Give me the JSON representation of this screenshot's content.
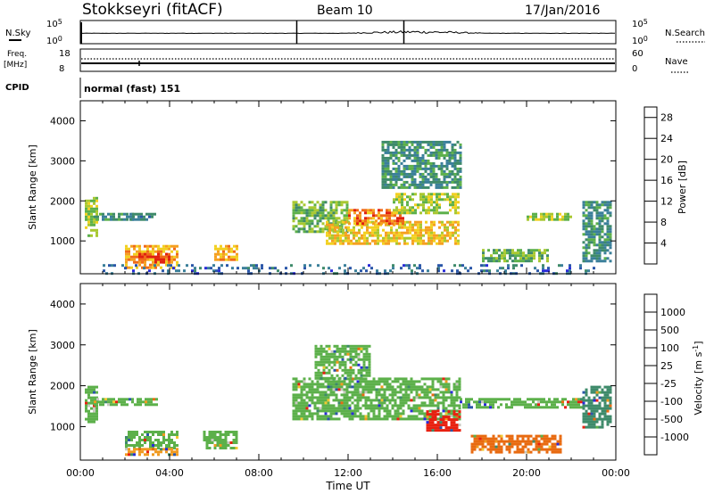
{
  "header": {
    "station": "Stokkseyri (fitACF)",
    "beam": "Beam 10",
    "date": "17/Jan/2016"
  },
  "top_panels": {
    "nsky": {
      "label": "N.Sky",
      "ticks": [
        "10^5",
        "10^0"
      ],
      "right_ticks": [
        "10^5",
        "10^0"
      ],
      "right_label": "N.Search"
    },
    "freq": {
      "label_line1": "Freq.",
      "label_line2": "[MHz]",
      "ticks": [
        "18",
        "8"
      ],
      "right_ticks": [
        "60",
        "0"
      ],
      "right_label": "Nave"
    },
    "cpid": {
      "label": "CPID",
      "value": "normal (fast) 151"
    }
  },
  "colors": {
    "power_scale": [
      "#2a2cd8",
      "#2a56a8",
      "#3a7f9a",
      "#3e8a6a",
      "#5cb04a",
      "#a8c830",
      "#f2d020",
      "#f5a020",
      "#f06a18",
      "#e02010"
    ],
    "velocity_scale": [
      "#2a2cd8",
      "#2a56a8",
      "#3e8a6a",
      "#5cb04a",
      "#c8c8c0",
      "#f0c830",
      "#f09a20",
      "#e86a10",
      "#e82010"
    ]
  },
  "chart_data": [
    {
      "type": "heatmap",
      "panel": "power",
      "ylabel": "Slant Range [km]",
      "xlabel": "",
      "y_ticks": [
        "1000",
        "2000",
        "3000",
        "4000"
      ],
      "ylim": [
        180,
        4500
      ],
      "xlim_hours": [
        0,
        24
      ],
      "colorbar_label": "Power [dB]",
      "colorbar_ticks": [
        "4",
        "8",
        "12",
        "16",
        "20",
        "24",
        "28"
      ],
      "colorbar_range": [
        0,
        30
      ],
      "regions": [
        {
          "t0": 0.2,
          "t1": 0.7,
          "r0": 1100,
          "r1": 2100,
          "value": 16
        },
        {
          "t0": 0.6,
          "t1": 2.3,
          "r0": 1550,
          "r1": 1700,
          "value": 10
        },
        {
          "t0": 2.2,
          "t1": 3.4,
          "r0": 1550,
          "r1": 1700,
          "value": 8
        },
        {
          "t0": 2.0,
          "t1": 4.4,
          "r0": 350,
          "r1": 900,
          "value": 22
        },
        {
          "t0": 2.6,
          "t1": 4.0,
          "r0": 450,
          "r1": 700,
          "value": 27
        },
        {
          "t0": 6.0,
          "t1": 7.0,
          "r0": 500,
          "r1": 900,
          "value": 22
        },
        {
          "t0": 9.5,
          "t1": 12.0,
          "r0": 1200,
          "r1": 2000,
          "value": 14
        },
        {
          "t0": 11.0,
          "t1": 17.0,
          "r0": 900,
          "r1": 1500,
          "value": 20
        },
        {
          "t0": 12.0,
          "t1": 14.5,
          "r0": 1400,
          "r1": 1800,
          "value": 24
        },
        {
          "t0": 14.0,
          "t1": 17.0,
          "r0": 1700,
          "r1": 2200,
          "value": 16
        },
        {
          "t0": 13.5,
          "t1": 17.0,
          "r0": 2300,
          "r1": 3500,
          "value": 10
        },
        {
          "t0": 18.0,
          "t1": 21.0,
          "r0": 500,
          "r1": 800,
          "value": 14
        },
        {
          "t0": 20.0,
          "t1": 22.0,
          "r0": 1500,
          "r1": 1700,
          "value": 16
        },
        {
          "t0": 22.5,
          "t1": 23.8,
          "r0": 500,
          "r1": 2000,
          "value": 10
        },
        {
          "t0": 1.0,
          "t1": 23.0,
          "r0": 200,
          "r1": 420,
          "value": 6
        }
      ]
    },
    {
      "type": "heatmap",
      "panel": "velocity",
      "ylabel": "Slant Range [km]",
      "xlabel": "Time UT",
      "y_ticks": [
        "1000",
        "2000",
        "3000",
        "4000"
      ],
      "ylim": [
        180,
        4500
      ],
      "x_ticks": [
        "00:00",
        "04:00",
        "08:00",
        "12:00",
        "16:00",
        "20:00",
        "00:00"
      ],
      "xlim_hours": [
        0,
        24
      ],
      "colorbar_label": "Velocity [m s^-1]",
      "colorbar_ticks": [
        "1000",
        "500",
        "100",
        "25",
        "-25",
        "-100",
        "-500",
        "-1000"
      ],
      "regions": [
        {
          "t0": 0.2,
          "t1": 0.7,
          "r0": 1100,
          "r1": 2000,
          "value": "25"
        },
        {
          "t0": 0.6,
          "t1": 3.4,
          "r0": 1550,
          "r1": 1700,
          "value": "25"
        },
        {
          "t0": 2.0,
          "t1": 4.4,
          "r0": 500,
          "r1": 900,
          "value": "25"
        },
        {
          "t0": 2.0,
          "t1": 4.4,
          "r0": 300,
          "r1": 480,
          "value": "-100"
        },
        {
          "t0": 5.5,
          "t1": 7.0,
          "r0": 500,
          "r1": 900,
          "value": "25"
        },
        {
          "t0": 9.5,
          "t1": 17.0,
          "r0": 1200,
          "r1": 2200,
          "value": "25"
        },
        {
          "t0": 10.5,
          "t1": 13.0,
          "r0": 2200,
          "r1": 3000,
          "value": "25"
        },
        {
          "t0": 15.5,
          "t1": 17.0,
          "r0": 900,
          "r1": 1400,
          "value": "-1000"
        },
        {
          "t0": 17.5,
          "t1": 21.5,
          "r0": 400,
          "r1": 800,
          "value": "-500"
        },
        {
          "t0": 17.0,
          "t1": 22.5,
          "r0": 1500,
          "r1": 1700,
          "value": "25"
        },
        {
          "t0": 22.5,
          "t1": 23.8,
          "r0": 1000,
          "r1": 2000,
          "value": "100"
        }
      ]
    }
  ]
}
